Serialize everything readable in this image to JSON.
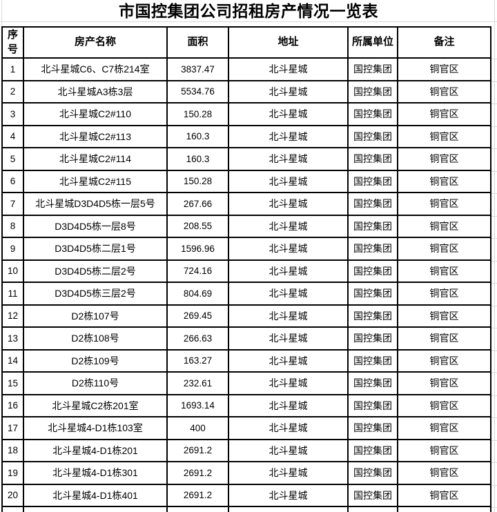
{
  "title": "市国控集团公司招租房产情况一览表",
  "colors": {
    "border": "#000000",
    "gridline": "#d9d9d9",
    "text": "#000000",
    "background": "#ffffff"
  },
  "table": {
    "columns": [
      {
        "key": "no",
        "label": "序号"
      },
      {
        "key": "name",
        "label": "房产名称"
      },
      {
        "key": "area",
        "label": "面积"
      },
      {
        "key": "address",
        "label": "地址"
      },
      {
        "key": "unit",
        "label": "所属单位"
      },
      {
        "key": "note",
        "label": "备注"
      }
    ],
    "rows": [
      {
        "no": "1",
        "name": "北斗星城C6、C7栋214室",
        "area": "3837.47",
        "address": "北斗星城",
        "unit": "国控集团",
        "note": "铜官区"
      },
      {
        "no": "2",
        "name": "北斗星城A3栋3层",
        "area": "5534.76",
        "address": "北斗星城",
        "unit": "国控集团",
        "note": "铜官区"
      },
      {
        "no": "3",
        "name": "北斗星城C2#110",
        "area": "150.28",
        "address": "北斗星城",
        "unit": "国控集团",
        "note": "铜官区"
      },
      {
        "no": "4",
        "name": "北斗星城C2#113",
        "area": "160.3",
        "address": "北斗星城",
        "unit": "国控集团",
        "note": "铜官区"
      },
      {
        "no": "5",
        "name": "北斗星城C2#114",
        "area": "160.3",
        "address": "北斗星城",
        "unit": "国控集团",
        "note": "铜官区"
      },
      {
        "no": "6",
        "name": "北斗星城C2#115",
        "area": "150.28",
        "address": "北斗星城",
        "unit": "国控集团",
        "note": "铜官区"
      },
      {
        "no": "7",
        "name": "北斗星城D3D4D5栋一层5号",
        "area": "267.66",
        "address": "北斗星城",
        "unit": "国控集团",
        "note": "铜官区"
      },
      {
        "no": "8",
        "name": "D3D4D5栋一层8号",
        "area": "208.55",
        "address": "北斗星城",
        "unit": "国控集团",
        "note": "铜官区"
      },
      {
        "no": "9",
        "name": "D3D4D5栋二层1号",
        "area": "1596.96",
        "address": "北斗星城",
        "unit": "国控集团",
        "note": "铜官区"
      },
      {
        "no": "10",
        "name": "D3D4D5栋二层2号",
        "area": "724.16",
        "address": "北斗星城",
        "unit": "国控集团",
        "note": "铜官区"
      },
      {
        "no": "11",
        "name": "D3D4D5栋三层2号",
        "area": "804.69",
        "address": "北斗星城",
        "unit": "国控集团",
        "note": "铜官区"
      },
      {
        "no": "12",
        "name": "D2栋107号",
        "area": "269.45",
        "address": "北斗星城",
        "unit": "国控集团",
        "note": "铜官区"
      },
      {
        "no": "13",
        "name": "D2栋108号",
        "area": "266.63",
        "address": "北斗星城",
        "unit": "国控集团",
        "note": "铜官区"
      },
      {
        "no": "14",
        "name": "D2栋109号",
        "area": "163.27",
        "address": "北斗星城",
        "unit": "国控集团",
        "note": "铜官区"
      },
      {
        "no": "15",
        "name": "D2栋110号",
        "area": "232.61",
        "address": "北斗星城",
        "unit": "国控集团",
        "note": "铜官区"
      },
      {
        "no": "16",
        "name": "北斗星城C2栋201室",
        "area": "1693.14",
        "address": "北斗星城",
        "unit": "国控集团",
        "note": "铜官区"
      },
      {
        "no": "17",
        "name": "北斗星城4-D1栋103室",
        "area": "400",
        "address": "北斗星城",
        "unit": "国控集团",
        "note": "铜官区"
      },
      {
        "no": "18",
        "name": "北斗星城4-D1栋201",
        "area": "2691.2",
        "address": "北斗星城",
        "unit": "国控集团",
        "note": "铜官区"
      },
      {
        "no": "19",
        "name": "北斗星城4-D1栋301",
        "area": "2691.2",
        "address": "北斗星城",
        "unit": "国控集团",
        "note": "铜官区"
      },
      {
        "no": "20",
        "name": "北斗星城4-D1栋401",
        "area": "2691.2",
        "address": "北斗星城",
        "unit": "国控集团",
        "note": "铜官区"
      }
    ]
  }
}
